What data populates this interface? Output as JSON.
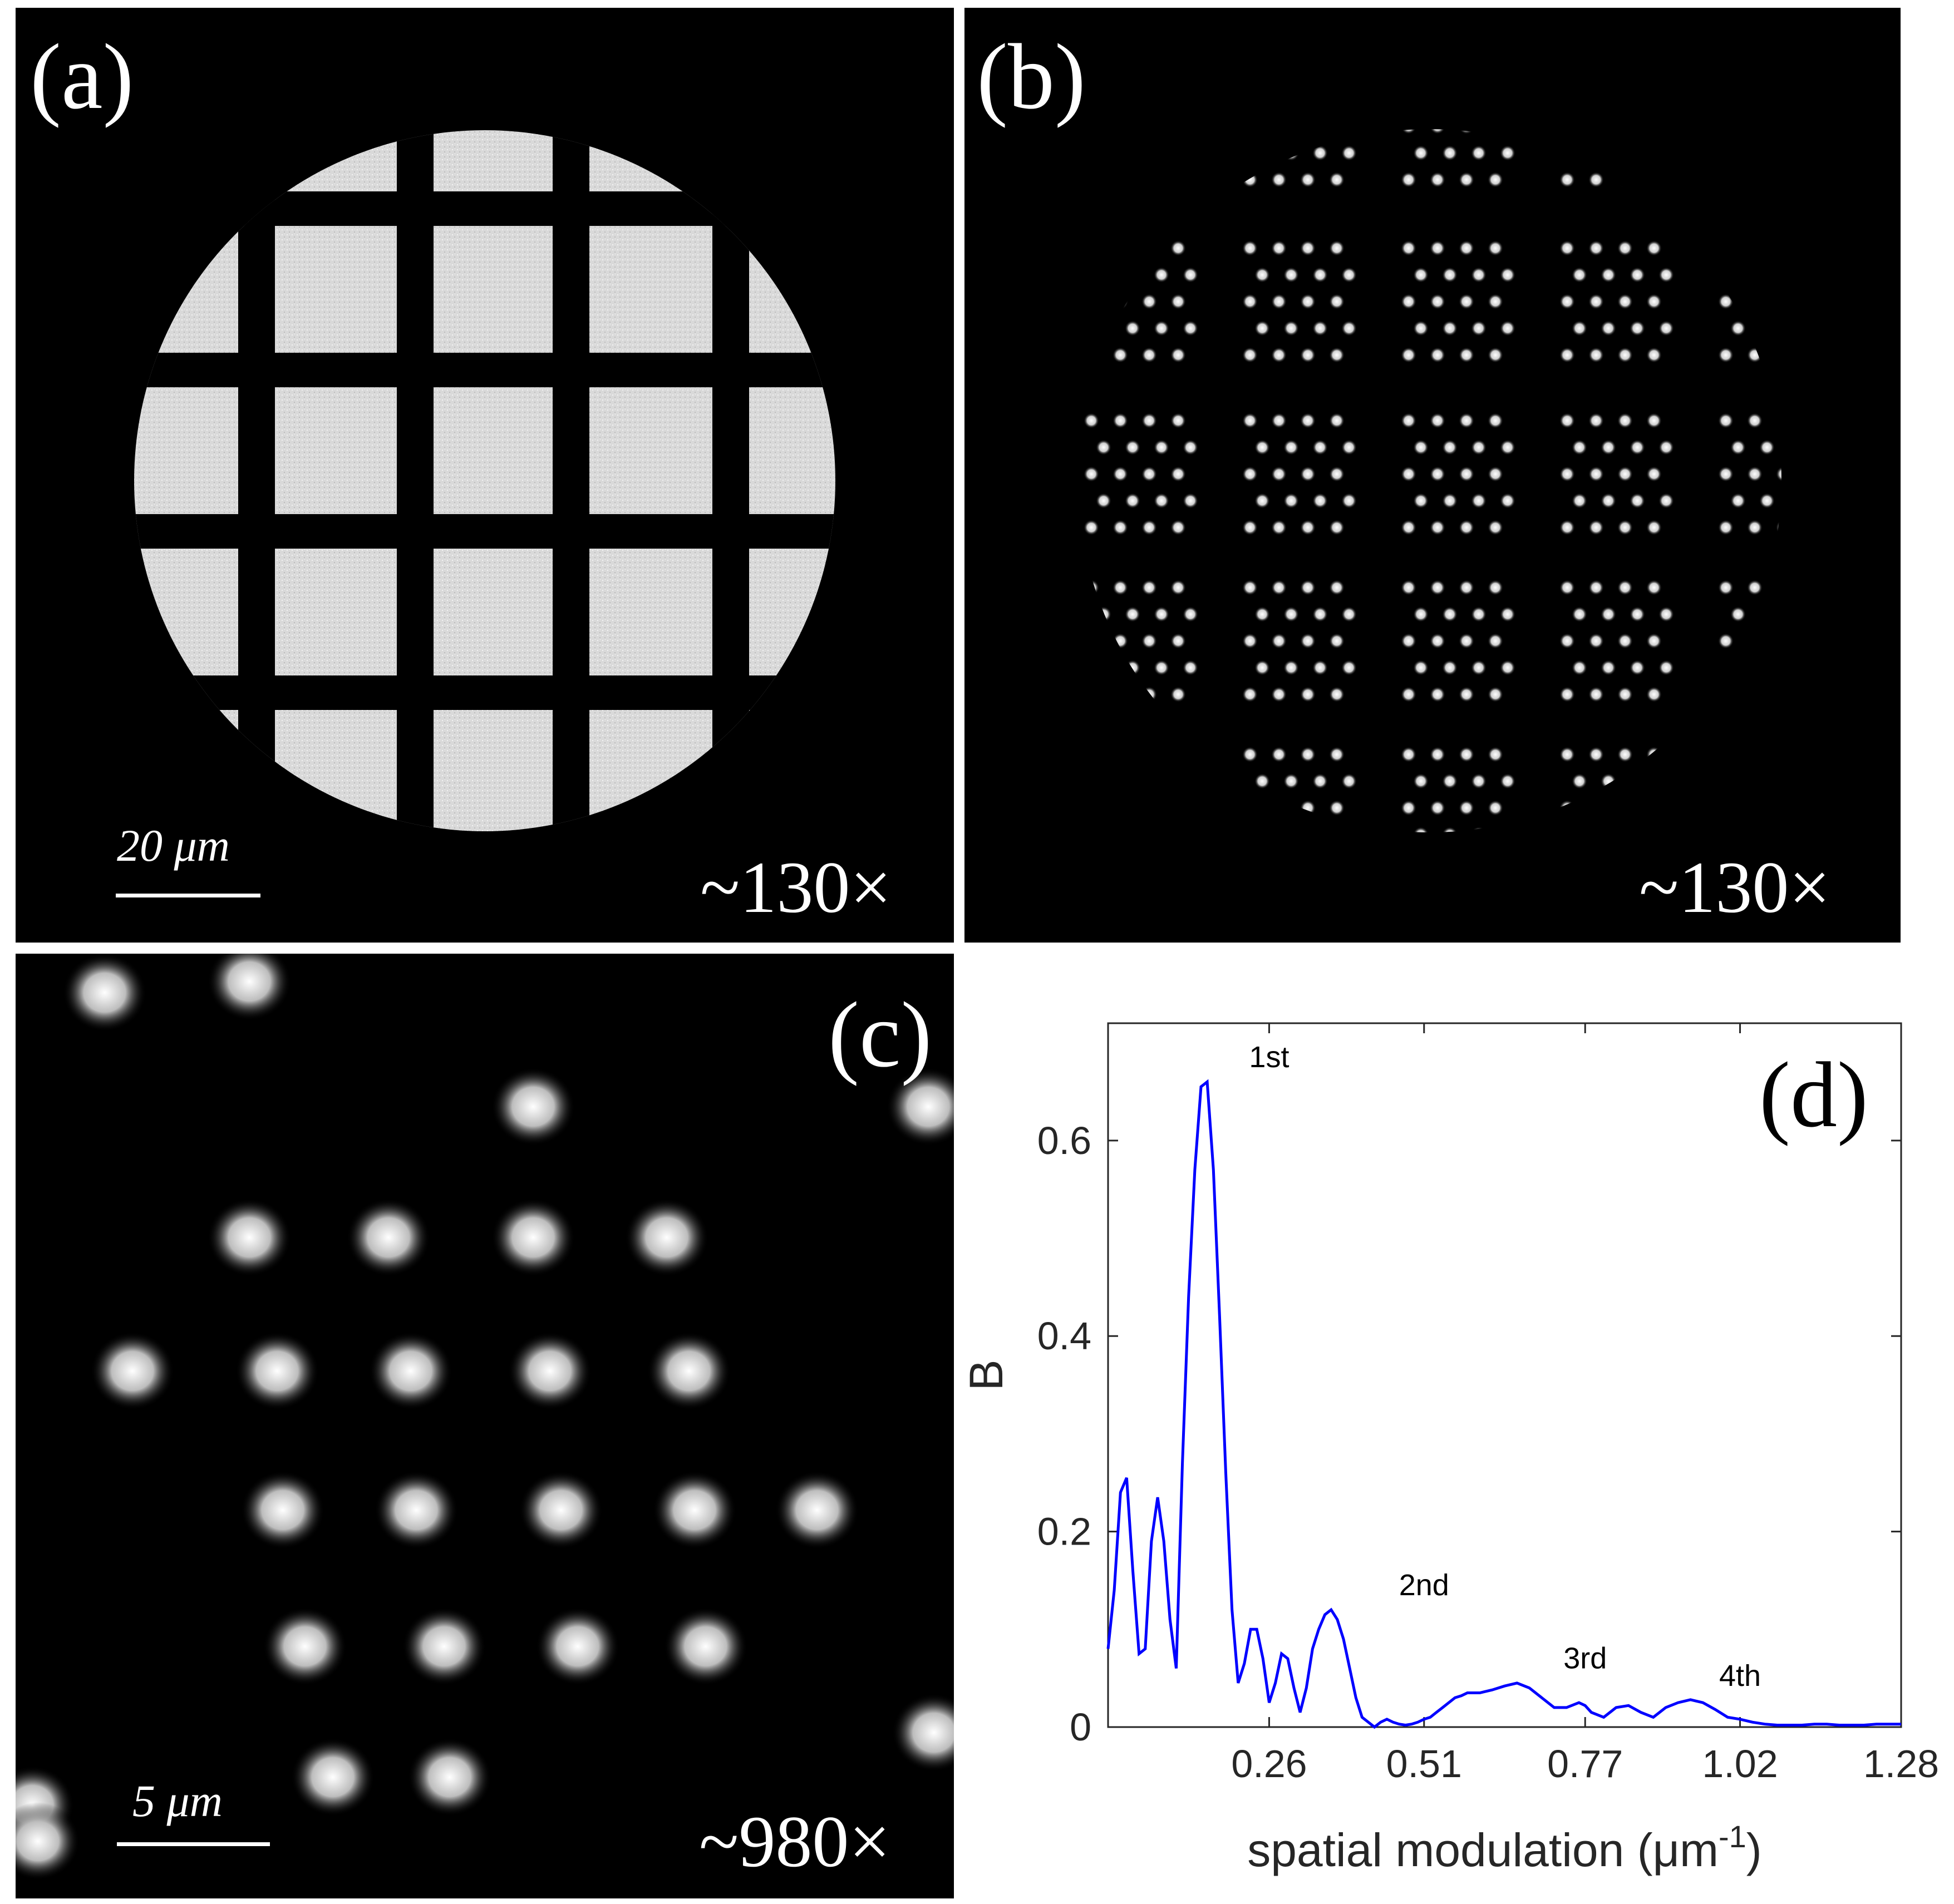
{
  "panels": {
    "a": {
      "label": "(a)",
      "magnification": "~130×",
      "scale_bar": "20 μm"
    },
    "b": {
      "label": "(b)",
      "magnification": "~130×"
    },
    "c": {
      "label": "(c)",
      "magnification": "~980×",
      "scale_bar": "5 μm"
    },
    "d": {
      "label": "(d)"
    }
  },
  "chart_data": {
    "type": "line",
    "xlabel": "spatial modulation (μm",
    "xlabel_sup": "-1",
    "xlabel_close": ")",
    "ylabel": "B",
    "xlim": [
      0,
      1.28
    ],
    "ylim": [
      0,
      0.72
    ],
    "xticks": [
      0.26,
      0.51,
      0.77,
      1.02,
      1.28
    ],
    "xtick_labels": [
      "0.26",
      "0.51",
      "0.77",
      "1.02",
      "1.28"
    ],
    "yticks": [
      0,
      0.2,
      0.4,
      0.6
    ],
    "ytick_labels": [
      "0",
      "0.2",
      "0.4",
      "0.6"
    ],
    "line_color": "#0000ff",
    "series": [
      {
        "x": [
          0.0,
          0.01,
          0.02,
          0.03,
          0.04,
          0.05,
          0.06,
          0.07,
          0.08,
          0.09,
          0.1,
          0.11,
          0.12,
          0.13,
          0.14,
          0.15,
          0.16,
          0.17,
          0.18,
          0.19,
          0.2,
          0.21,
          0.22,
          0.23,
          0.24,
          0.25,
          0.26,
          0.27,
          0.28,
          0.29,
          0.3,
          0.31,
          0.32,
          0.33,
          0.34,
          0.35,
          0.36,
          0.37,
          0.38,
          0.39,
          0.4,
          0.41,
          0.42,
          0.43,
          0.44,
          0.45,
          0.46,
          0.47,
          0.48,
          0.49,
          0.5,
          0.51,
          0.52,
          0.53,
          0.54,
          0.55,
          0.56,
          0.57,
          0.58,
          0.59,
          0.6,
          0.62,
          0.64,
          0.66,
          0.68,
          0.7,
          0.72,
          0.74,
          0.76,
          0.77,
          0.78,
          0.8,
          0.82,
          0.84,
          0.86,
          0.88,
          0.9,
          0.92,
          0.94,
          0.96,
          0.98,
          1.0,
          1.02,
          1.04,
          1.06,
          1.08,
          1.1,
          1.12,
          1.14,
          1.16,
          1.18,
          1.2,
          1.22,
          1.24,
          1.26,
          1.28
        ],
        "values": [
          0.08,
          0.14,
          0.24,
          0.255,
          0.16,
          0.075,
          0.08,
          0.19,
          0.235,
          0.19,
          0.11,
          0.06,
          0.27,
          0.44,
          0.57,
          0.655,
          0.66,
          0.57,
          0.42,
          0.26,
          0.12,
          0.045,
          0.065,
          0.1,
          0.1,
          0.07,
          0.025,
          0.045,
          0.075,
          0.07,
          0.04,
          0.015,
          0.04,
          0.08,
          0.1,
          0.115,
          0.12,
          0.11,
          0.09,
          0.06,
          0.03,
          0.01,
          0.005,
          0.0,
          0.005,
          0.008,
          0.005,
          0.003,
          0.002,
          0.003,
          0.005,
          0.008,
          0.01,
          0.015,
          0.02,
          0.025,
          0.03,
          0.032,
          0.035,
          0.035,
          0.035,
          0.038,
          0.042,
          0.045,
          0.04,
          0.03,
          0.02,
          0.02,
          0.025,
          0.022,
          0.015,
          0.01,
          0.02,
          0.022,
          0.015,
          0.01,
          0.02,
          0.025,
          0.028,
          0.025,
          0.018,
          0.01,
          0.008,
          0.005,
          0.003,
          0.002,
          0.002,
          0.002,
          0.003,
          0.003,
          0.002,
          0.002,
          0.002,
          0.003,
          0.003,
          0.003
        ]
      }
    ],
    "annotations": [
      {
        "text": "1st",
        "x": 0.26,
        "y": 0.675
      },
      {
        "text": "2nd",
        "x": 0.51,
        "y": 0.135
      },
      {
        "text": "3rd",
        "x": 0.77,
        "y": 0.06
      },
      {
        "text": "4th",
        "x": 1.02,
        "y": 0.042
      }
    ]
  }
}
